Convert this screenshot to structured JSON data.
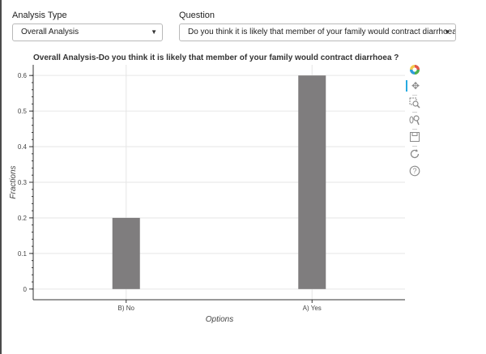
{
  "controls": {
    "analysis_type": {
      "label": "Analysis Type",
      "value": "Overall Analysis",
      "caret": "▼"
    },
    "question": {
      "label": "Question",
      "value": "Do you think it is likely that member of your family would contract diarrhoea ?",
      "caret": "▼"
    }
  },
  "toolbar": {
    "tools": [
      {
        "name": "bokeh-logo-icon"
      },
      {
        "name": "pan-icon",
        "glyph": "✥"
      },
      {
        "name": "box-zoom-icon",
        "glyph": "⚲"
      },
      {
        "name": "wheel-zoom-icon",
        "glyph": "⚲"
      },
      {
        "name": "save-icon",
        "glyph": "🖫"
      },
      {
        "name": "reset-icon",
        "glyph": "↻"
      },
      {
        "name": "help-icon",
        "glyph": "?"
      }
    ]
  },
  "chart_data": {
    "type": "bar",
    "title": "Overall Analysis-Do you think it is likely that member of your family would contract diarrhoea ?",
    "xlabel": "Options",
    "ylabel": "Fractions",
    "categories": [
      "B) No",
      "A) Yes"
    ],
    "values": [
      0.2,
      0.6
    ],
    "ylim": [
      -0.03,
      0.63
    ],
    "yticks": [
      0,
      0.1,
      0.2,
      0.3,
      0.4,
      0.5,
      0.6
    ],
    "yticklabels": [
      "0",
      "0.1",
      "0.2",
      "0.3",
      "0.4",
      "0.5",
      "0.6"
    ],
    "bar_color": "#7f7d7e",
    "grid": true
  }
}
